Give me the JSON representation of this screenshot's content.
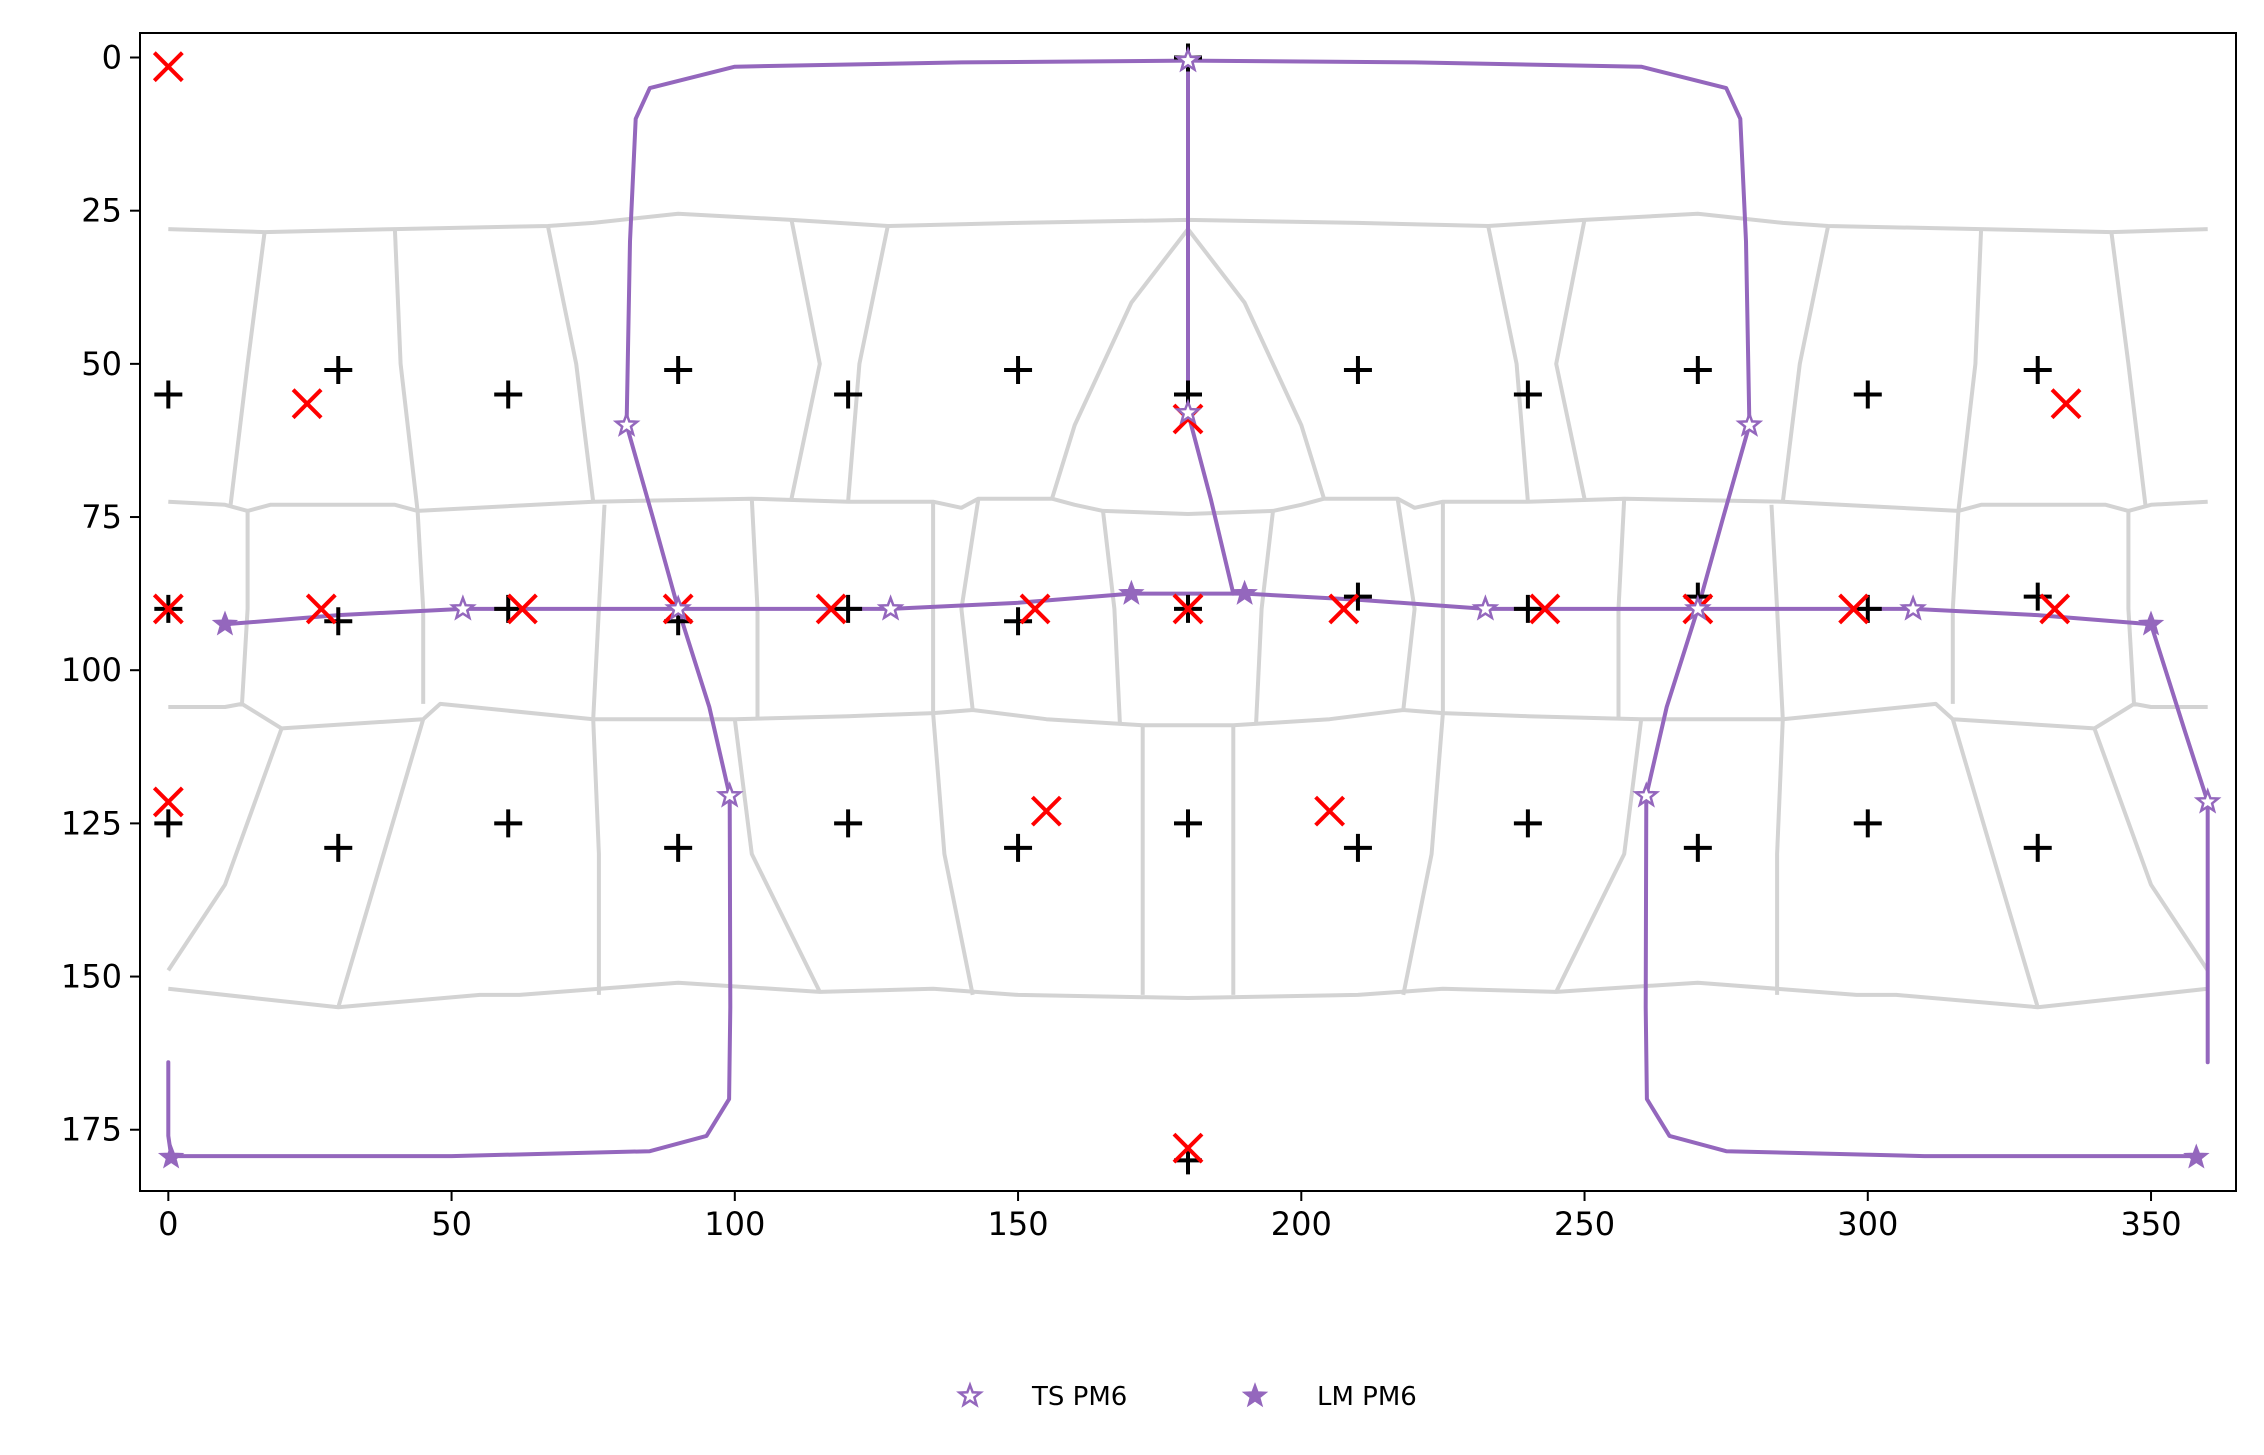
{
  "chart_data": {
    "type": "scatter",
    "title": "",
    "xlabel": "",
    "ylabel": "",
    "xlim": [
      -5,
      365
    ],
    "ylim": [
      185,
      -4
    ],
    "y_inverted": true,
    "grid": false,
    "xticks": [
      0,
      50,
      100,
      150,
      200,
      250,
      300,
      350
    ],
    "yticks": [
      0,
      25,
      50,
      75,
      100,
      125,
      150,
      175
    ],
    "legend": {
      "placement": "bottom-center, below plot",
      "entries": [
        {
          "label": "TS PM6",
          "marker": "open-star",
          "color": "#9467bd"
        },
        {
          "label": "LM PM6",
          "marker": "filled-star",
          "color": "#9467bd"
        }
      ]
    },
    "colors": {
      "grid_lines": "#d3d3d3",
      "path": "#9467bd",
      "plus_markers": "#000000",
      "x_markers": "#ff0000"
    },
    "series": [
      {
        "name": "TS PM6",
        "marker": "open-star",
        "points": [
          [
            80.9,
            60
          ],
          [
            180,
            58
          ],
          [
            279.1,
            60
          ],
          [
            52,
            90
          ],
          [
            127.5,
            90
          ],
          [
            232.5,
            90
          ],
          [
            308,
            90
          ],
          [
            90,
            90
          ],
          [
            270,
            90
          ],
          [
            99.1,
            120.5
          ],
          [
            260.9,
            120.5
          ],
          [
            360,
            121.5
          ],
          [
            180,
            0.5
          ]
        ]
      },
      {
        "name": "LM PM6",
        "marker": "filled-star",
        "points": [
          [
            10,
            92.5
          ],
          [
            170,
            87.5
          ],
          [
            190,
            87.5
          ],
          [
            350,
            92.5
          ],
          [
            0.5,
            179.5
          ],
          [
            358,
            179.5
          ],
          [
            180,
            0.5
          ]
        ]
      },
      {
        "name": "",
        "marker": "plus",
        "points": [
          [
            0,
            55
          ],
          [
            30,
            51
          ],
          [
            60,
            55
          ],
          [
            90,
            51
          ],
          [
            120,
            55
          ],
          [
            150,
            51
          ],
          [
            180,
            55
          ],
          [
            210,
            51
          ],
          [
            240,
            55
          ],
          [
            270,
            51
          ],
          [
            300,
            55
          ],
          [
            330,
            51
          ],
          [
            0,
            90
          ],
          [
            30,
            92
          ],
          [
            60,
            90
          ],
          [
            90,
            92
          ],
          [
            120,
            90
          ],
          [
            150,
            92
          ],
          [
            180,
            90
          ],
          [
            210,
            88
          ],
          [
            240,
            90
          ],
          [
            270,
            88
          ],
          [
            300,
            90
          ],
          [
            330,
            88
          ],
          [
            0,
            125
          ],
          [
            30,
            129
          ],
          [
            60,
            125
          ],
          [
            90,
            129
          ],
          [
            120,
            125
          ],
          [
            150,
            129
          ],
          [
            180,
            125
          ],
          [
            210,
            129
          ],
          [
            240,
            125
          ],
          [
            270,
            129
          ],
          [
            300,
            125
          ],
          [
            330,
            129
          ],
          [
            180,
            0
          ],
          [
            180,
            180
          ]
        ]
      },
      {
        "name": "",
        "marker": "x",
        "points": [
          [
            0,
            1.5
          ],
          [
            24.5,
            56.5
          ],
          [
            335,
            56.5
          ],
          [
            180,
            59
          ],
          [
            0,
            90
          ],
          [
            27,
            90
          ],
          [
            62.5,
            90
          ],
          [
            90,
            90
          ],
          [
            117,
            90
          ],
          [
            153,
            90
          ],
          [
            180,
            90
          ],
          [
            207.5,
            90
          ],
          [
            243,
            90
          ],
          [
            270,
            90
          ],
          [
            297.5,
            90
          ],
          [
            333,
            90
          ],
          [
            0,
            121.5
          ],
          [
            155,
            123
          ],
          [
            205,
            123
          ],
          [
            180,
            178
          ]
        ]
      }
    ],
    "paths": [
      {
        "name": "",
        "points": [
          [
            0,
            164
          ],
          [
            0,
            176
          ],
          [
            0.5,
            179.3
          ],
          [
            50,
            179.3
          ],
          [
            85,
            178.5
          ],
          [
            95,
            176
          ],
          [
            99,
            170
          ],
          [
            99.2,
            155
          ],
          [
            99.1,
            120.5
          ],
          [
            95.5,
            106
          ],
          [
            90,
            90
          ],
          [
            85.5,
            75
          ],
          [
            80.9,
            60
          ],
          [
            81.5,
            30
          ],
          [
            82.5,
            10
          ],
          [
            85,
            5
          ],
          [
            100,
            1.5
          ],
          [
            140,
            0.8
          ],
          [
            180,
            0.5
          ],
          [
            220,
            0.8
          ],
          [
            260,
            1.5
          ],
          [
            275,
            5
          ],
          [
            277.5,
            10
          ],
          [
            278.5,
            30
          ],
          [
            279.1,
            60
          ],
          [
            274.5,
            75
          ],
          [
            270,
            90
          ],
          [
            264.5,
            106
          ],
          [
            260.9,
            120.5
          ],
          [
            260.8,
            155
          ],
          [
            261,
            170
          ],
          [
            265,
            176
          ],
          [
            275,
            178.5
          ],
          [
            310,
            179.3
          ],
          [
            358,
            179.3
          ]
        ]
      },
      {
        "name": "",
        "points": [
          [
            10,
            92.5
          ],
          [
            30,
            91
          ],
          [
            52,
            90
          ],
          [
            90,
            90
          ],
          [
            127.5,
            90
          ],
          [
            150,
            89
          ],
          [
            170,
            87.5
          ],
          [
            180,
            87.5
          ],
          [
            190,
            87.5
          ],
          [
            210,
            88.5
          ],
          [
            232.5,
            90
          ],
          [
            270,
            90
          ],
          [
            308,
            90
          ],
          [
            330,
            91
          ],
          [
            350,
            92.5
          ],
          [
            356,
            110
          ],
          [
            360,
            121.5
          ],
          [
            360,
            164
          ]
        ]
      },
      {
        "name": "",
        "points": [
          [
            180,
            0.5
          ],
          [
            180,
            58
          ],
          [
            184,
            72
          ],
          [
            188,
            87.5
          ]
        ]
      }
    ]
  }
}
